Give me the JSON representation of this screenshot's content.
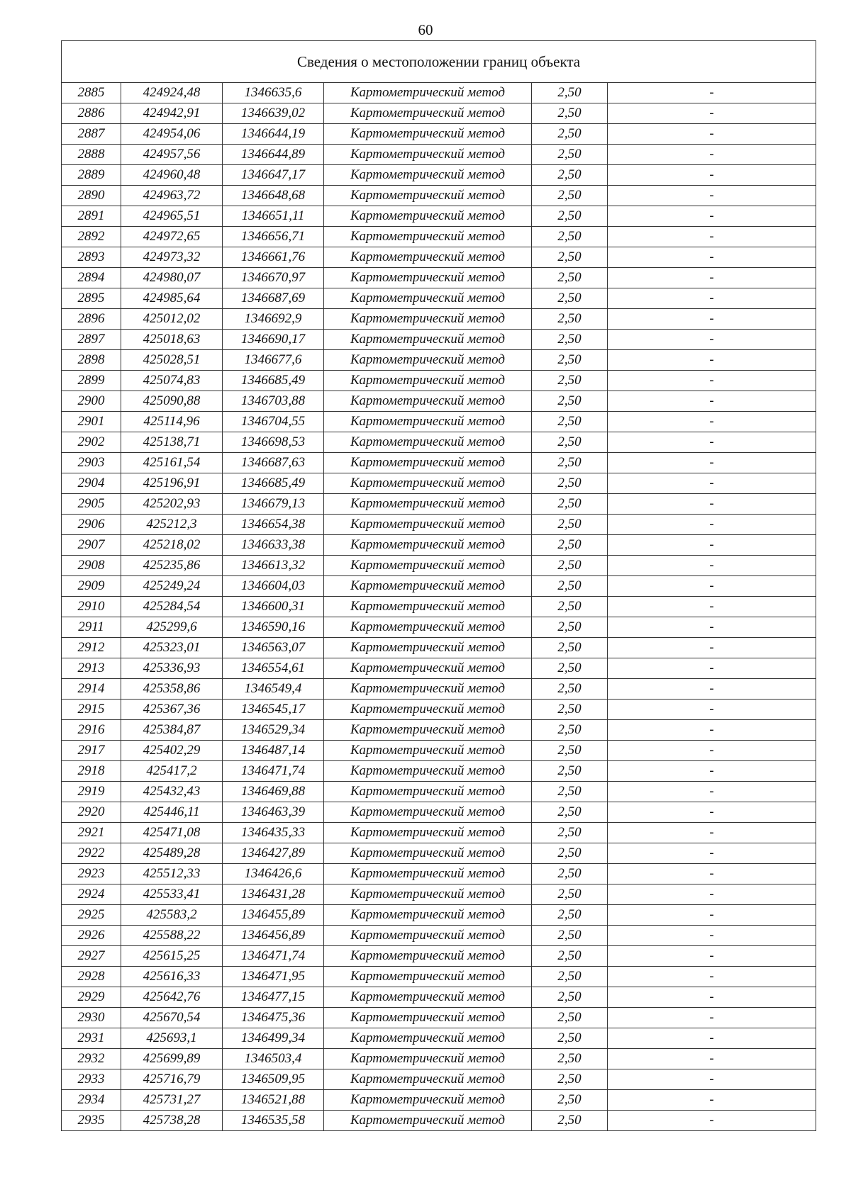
{
  "page_number": "60",
  "table": {
    "title": "Сведения о местоположении границ объекта",
    "rows": [
      [
        "2885",
        "424924,48",
        "1346635,6",
        "Картометрический метод",
        "2,50",
        "-"
      ],
      [
        "2886",
        "424942,91",
        "1346639,02",
        "Картометрический метод",
        "2,50",
        "-"
      ],
      [
        "2887",
        "424954,06",
        "1346644,19",
        "Картометрический метод",
        "2,50",
        "-"
      ],
      [
        "2888",
        "424957,56",
        "1346644,89",
        "Картометрический метод",
        "2,50",
        "-"
      ],
      [
        "2889",
        "424960,48",
        "1346647,17",
        "Картометрический метод",
        "2,50",
        "-"
      ],
      [
        "2890",
        "424963,72",
        "1346648,68",
        "Картометрический метод",
        "2,50",
        "-"
      ],
      [
        "2891",
        "424965,51",
        "1346651,11",
        "Картометрический метод",
        "2,50",
        "-"
      ],
      [
        "2892",
        "424972,65",
        "1346656,71",
        "Картометрический метод",
        "2,50",
        "-"
      ],
      [
        "2893",
        "424973,32",
        "1346661,76",
        "Картометрический метод",
        "2,50",
        "-"
      ],
      [
        "2894",
        "424980,07",
        "1346670,97",
        "Картометрический метод",
        "2,50",
        "-"
      ],
      [
        "2895",
        "424985,64",
        "1346687,69",
        "Картометрический метод",
        "2,50",
        "-"
      ],
      [
        "2896",
        "425012,02",
        "1346692,9",
        "Картометрический метод",
        "2,50",
        "-"
      ],
      [
        "2897",
        "425018,63",
        "1346690,17",
        "Картометрический метод",
        "2,50",
        "-"
      ],
      [
        "2898",
        "425028,51",
        "1346677,6",
        "Картометрический метод",
        "2,50",
        "-"
      ],
      [
        "2899",
        "425074,83",
        "1346685,49",
        "Картометрический метод",
        "2,50",
        "-"
      ],
      [
        "2900",
        "425090,88",
        "1346703,88",
        "Картометрический метод",
        "2,50",
        "-"
      ],
      [
        "2901",
        "425114,96",
        "1346704,55",
        "Картометрический метод",
        "2,50",
        "-"
      ],
      [
        "2902",
        "425138,71",
        "1346698,53",
        "Картометрический метод",
        "2,50",
        "-"
      ],
      [
        "2903",
        "425161,54",
        "1346687,63",
        "Картометрический метод",
        "2,50",
        "-"
      ],
      [
        "2904",
        "425196,91",
        "1346685,49",
        "Картометрический метод",
        "2,50",
        "-"
      ],
      [
        "2905",
        "425202,93",
        "1346679,13",
        "Картометрический метод",
        "2,50",
        "-"
      ],
      [
        "2906",
        "425212,3",
        "1346654,38",
        "Картометрический метод",
        "2,50",
        "-"
      ],
      [
        "2907",
        "425218,02",
        "1346633,38",
        "Картометрический метод",
        "2,50",
        "-"
      ],
      [
        "2908",
        "425235,86",
        "1346613,32",
        "Картометрический метод",
        "2,50",
        "-"
      ],
      [
        "2909",
        "425249,24",
        "1346604,03",
        "Картометрический метод",
        "2,50",
        "-"
      ],
      [
        "2910",
        "425284,54",
        "1346600,31",
        "Картометрический метод",
        "2,50",
        "-"
      ],
      [
        "2911",
        "425299,6",
        "1346590,16",
        "Картометрический метод",
        "2,50",
        "-"
      ],
      [
        "2912",
        "425323,01",
        "1346563,07",
        "Картометрический метод",
        "2,50",
        "-"
      ],
      [
        "2913",
        "425336,93",
        "1346554,61",
        "Картометрический метод",
        "2,50",
        "-"
      ],
      [
        "2914",
        "425358,86",
        "1346549,4",
        "Картометрический метод",
        "2,50",
        "-"
      ],
      [
        "2915",
        "425367,36",
        "1346545,17",
        "Картометрический метод",
        "2,50",
        "-"
      ],
      [
        "2916",
        "425384,87",
        "1346529,34",
        "Картометрический метод",
        "2,50",
        "-"
      ],
      [
        "2917",
        "425402,29",
        "1346487,14",
        "Картометрический метод",
        "2,50",
        "-"
      ],
      [
        "2918",
        "425417,2",
        "1346471,74",
        "Картометрический метод",
        "2,50",
        "-"
      ],
      [
        "2919",
        "425432,43",
        "1346469,88",
        "Картометрический метод",
        "2,50",
        "-"
      ],
      [
        "2920",
        "425446,11",
        "1346463,39",
        "Картометрический метод",
        "2,50",
        "-"
      ],
      [
        "2921",
        "425471,08",
        "1346435,33",
        "Картометрический метод",
        "2,50",
        "-"
      ],
      [
        "2922",
        "425489,28",
        "1346427,89",
        "Картометрический метод",
        "2,50",
        "-"
      ],
      [
        "2923",
        "425512,33",
        "1346426,6",
        "Картометрический метод",
        "2,50",
        "-"
      ],
      [
        "2924",
        "425533,41",
        "1346431,28",
        "Картометрический метод",
        "2,50",
        "-"
      ],
      [
        "2925",
        "425583,2",
        "1346455,89",
        "Картометрический метод",
        "2,50",
        "-"
      ],
      [
        "2926",
        "425588,22",
        "1346456,89",
        "Картометрический метод",
        "2,50",
        "-"
      ],
      [
        "2927",
        "425615,25",
        "1346471,74",
        "Картометрический метод",
        "2,50",
        "-"
      ],
      [
        "2928",
        "425616,33",
        "1346471,95",
        "Картометрический метод",
        "2,50",
        "-"
      ],
      [
        "2929",
        "425642,76",
        "1346477,15",
        "Картометрический метод",
        "2,50",
        "-"
      ],
      [
        "2930",
        "425670,54",
        "1346475,36",
        "Картометрический метод",
        "2,50",
        "-"
      ],
      [
        "2931",
        "425693,1",
        "1346499,34",
        "Картометрический метод",
        "2,50",
        "-"
      ],
      [
        "2932",
        "425699,89",
        "1346503,4",
        "Картометрический метод",
        "2,50",
        "-"
      ],
      [
        "2933",
        "425716,79",
        "1346509,95",
        "Картометрический метод",
        "2,50",
        "-"
      ],
      [
        "2934",
        "425731,27",
        "1346521,88",
        "Картометрический метод",
        "2,50",
        "-"
      ],
      [
        "2935",
        "425738,28",
        "1346535,58",
        "Картометрический метод",
        "2,50",
        "-"
      ]
    ]
  }
}
